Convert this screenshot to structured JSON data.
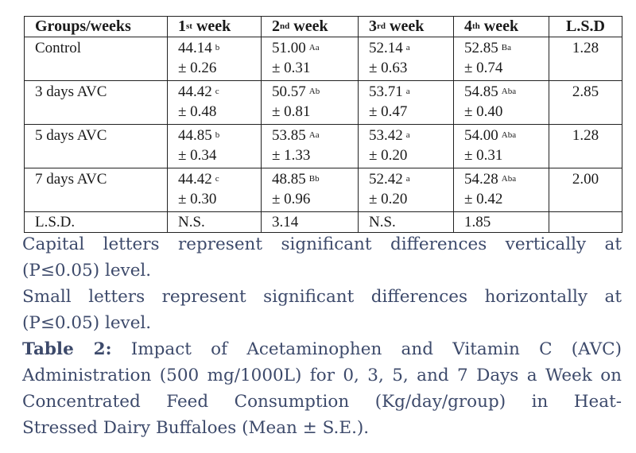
{
  "table": {
    "headers": [
      {
        "text": "Groups/weeks",
        "sup": ""
      },
      {
        "text": "1",
        "sup": "st",
        "after": " week"
      },
      {
        "text": "2",
        "sup": "nd",
        "after": " week"
      },
      {
        "text": "3",
        "sup": "rd",
        "after": " week"
      },
      {
        "text": "4",
        "sup": "th",
        "after": " week"
      },
      {
        "text": "L.S.D",
        "sup": ""
      }
    ],
    "rows": [
      {
        "group": "Control",
        "cells": [
          {
            "v": "44.14",
            "sup": "b",
            "se": "± 0.26"
          },
          {
            "v": "51.00",
            "sup": "Aa",
            "se": "± 0.31"
          },
          {
            "v": "52.14",
            "sup": "a",
            "se": "± 0.63"
          },
          {
            "v": "52.85",
            "sup": "Ba",
            "se": "± 0.74"
          }
        ],
        "lsd": "1.28"
      },
      {
        "group": "3 days AVC",
        "cells": [
          {
            "v": "44.42",
            "sup": "c",
            "se": "± 0.48"
          },
          {
            "v": "50.57",
            "sup": "Ab",
            "se": "± 0.81"
          },
          {
            "v": "53.71",
            "sup": "a",
            "se": "± 0.47"
          },
          {
            "v": "54.85",
            "sup": "Aba",
            "se": "± 0.40"
          }
        ],
        "lsd": "2.85"
      },
      {
        "group": "5 days AVC",
        "cells": [
          {
            "v": "44.85",
            "sup": "b",
            "se": "± 0.34"
          },
          {
            "v": "53.85",
            "sup": "Aa",
            "se": "± 1.33"
          },
          {
            "v": "53.42",
            "sup": "a",
            "se": "± 0.20"
          },
          {
            "v": "54.00",
            "sup": "Aba",
            "se": "± 0.31"
          }
        ],
        "lsd": "1.28"
      },
      {
        "group": "7 days AVC",
        "cells": [
          {
            "v": "44.42",
            "sup": "c",
            "se": "± 0.30"
          },
          {
            "v": "48.85",
            "sup": "Bb",
            "se": "± 0.96"
          },
          {
            "v": "52.42",
            "sup": "a",
            "se": "± 0.20"
          },
          {
            "v": "54.28",
            "sup": "Aba",
            "se": "± 0.42"
          }
        ],
        "lsd": "2.00"
      }
    ],
    "lsd_row": {
      "label": "L.S.D.",
      "values": [
        "N.S.",
        "3.14",
        "N.S.",
        "1.85",
        ""
      ]
    }
  },
  "notes": {
    "capital": [
      "Capital letters represent significant differences vertically at",
      "(P≤0.05) level."
    ],
    "small": [
      "Small letters represent significant differences horizontally at",
      "(P≤0.05) level."
    ],
    "caption_label": "Table 2:",
    "caption": [
      " Impact of Acetaminophen and Vitamin C (AVC)",
      "Administration (500 mg/1000L) for 0, 3, 5, and 7 Days a Week on",
      "Concentrated Feed Consumption (Kg/day/group) in Heat-",
      "Stressed Dairy Buffaloes (Mean ± S.E.)."
    ]
  },
  "colors": {
    "note_text": "#3d4a6b",
    "table_text": "#1a1a1a"
  }
}
